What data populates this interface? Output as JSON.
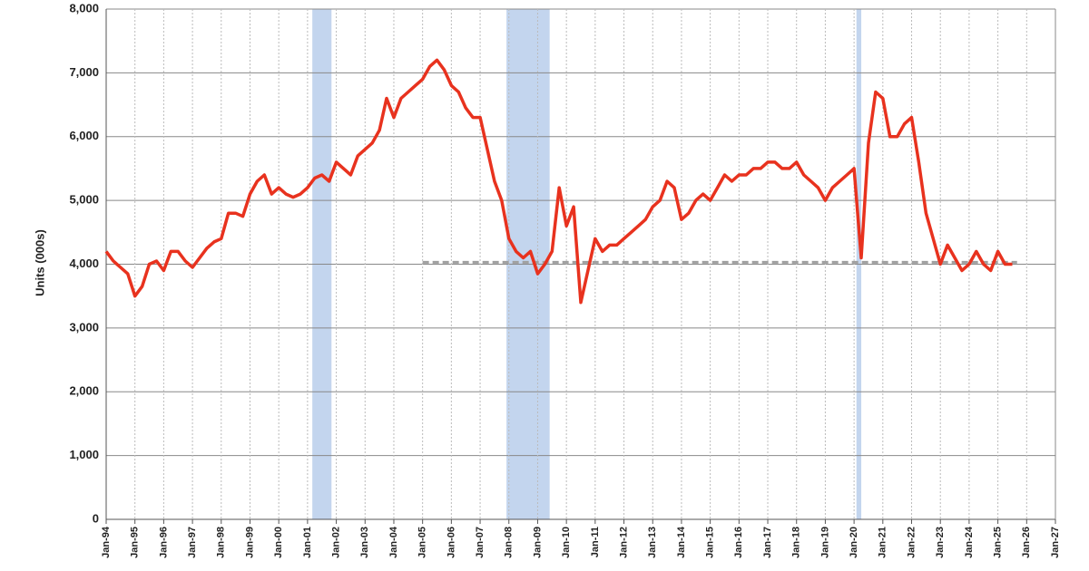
{
  "chart_data": {
    "type": "line",
    "ylabel": "Units (000s)",
    "x": [
      "1994-01",
      "1994-04",
      "1994-07",
      "1994-10",
      "1995-01",
      "1995-04",
      "1995-07",
      "1995-10",
      "1996-01",
      "1996-04",
      "1996-07",
      "1996-10",
      "1997-01",
      "1997-04",
      "1997-07",
      "1997-10",
      "1998-01",
      "1998-04",
      "1998-07",
      "1998-10",
      "1999-01",
      "1999-04",
      "1999-07",
      "1999-10",
      "2000-01",
      "2000-04",
      "2000-07",
      "2000-10",
      "2001-01",
      "2001-04",
      "2001-07",
      "2001-10",
      "2002-01",
      "2002-04",
      "2002-07",
      "2002-10",
      "2003-01",
      "2003-04",
      "2003-07",
      "2003-10",
      "2004-01",
      "2004-04",
      "2004-07",
      "2004-10",
      "2005-01",
      "2005-04",
      "2005-07",
      "2005-10",
      "2006-01",
      "2006-04",
      "2006-07",
      "2006-10",
      "2007-01",
      "2007-04",
      "2007-07",
      "2007-10",
      "2008-01",
      "2008-04",
      "2008-07",
      "2008-10",
      "2009-01",
      "2009-04",
      "2009-07",
      "2009-10",
      "2010-01",
      "2010-04",
      "2010-07",
      "2010-10",
      "2011-01",
      "2011-04",
      "2011-07",
      "2011-10",
      "2012-01",
      "2012-04",
      "2012-07",
      "2012-10",
      "2013-01",
      "2013-04",
      "2013-07",
      "2013-10",
      "2014-01",
      "2014-04",
      "2014-07",
      "2014-10",
      "2015-01",
      "2015-04",
      "2015-07",
      "2015-10",
      "2016-01",
      "2016-04",
      "2016-07",
      "2016-10",
      "2017-01",
      "2017-04",
      "2017-07",
      "2017-10",
      "2018-01",
      "2018-04",
      "2018-07",
      "2018-10",
      "2019-01",
      "2019-04",
      "2019-07",
      "2019-10",
      "2020-01",
      "2020-04",
      "2020-07",
      "2020-10",
      "2021-01",
      "2021-04",
      "2021-07",
      "2021-10",
      "2022-01",
      "2022-04",
      "2022-07",
      "2022-10",
      "2023-01",
      "2023-04",
      "2023-07",
      "2023-10",
      "2024-01",
      "2024-04",
      "2024-07",
      "2024-10",
      "2025-01",
      "2025-04",
      "2025-07"
    ],
    "series": [
      {
        "color": "#e8321e",
        "values": [
          4200,
          4050,
          3950,
          3850,
          3500,
          3650,
          4000,
          4050,
          3900,
          4200,
          4200,
          4050,
          3950,
          4100,
          4250,
          4350,
          4400,
          4800,
          4800,
          4750,
          5100,
          5300,
          5400,
          5100,
          5200,
          5100,
          5050,
          5100,
          5200,
          5350,
          5400,
          5300,
          5600,
          5500,
          5400,
          5700,
          5800,
          5900,
          6100,
          6600,
          6300,
          6600,
          6700,
          6800,
          6900,
          7100,
          7200,
          7050,
          6800,
          6700,
          6450,
          6300,
          6300,
          5800,
          5300,
          5000,
          4400,
          4200,
          4100,
          4200,
          3850,
          4000,
          4200,
          5200,
          4600,
          4900,
          3400,
          3900,
          4400,
          4200,
          4300,
          4300,
          4400,
          4500,
          4600,
          4700,
          4900,
          5000,
          5300,
          5200,
          4700,
          4800,
          5000,
          5100,
          5000,
          5200,
          5400,
          5300,
          5400,
          5400,
          5500,
          5500,
          5600,
          5600,
          5500,
          5500,
          5600,
          5400,
          5300,
          5200,
          5000,
          5200,
          5300,
          5400,
          5500,
          4100,
          5900,
          6700,
          6600,
          6000,
          6000,
          6200,
          6300,
          5600,
          4800,
          4400,
          4000,
          4300,
          4100,
          3900,
          4000,
          4200,
          4000,
          3900,
          4200,
          4000,
          4000
        ]
      }
    ],
    "recessions": [
      [
        "2001-03",
        "2001-11"
      ],
      [
        "2007-12",
        "2009-06"
      ],
      [
        "2020-02",
        "2020-04"
      ]
    ],
    "reference": {
      "value": 4030,
      "x": [
        "2005-01",
        "2025-09"
      ]
    },
    "xlim": [
      "1994-01",
      "2027-01"
    ],
    "xticks": [
      {
        "value": "1994-01",
        "label": "Jan-94"
      },
      {
        "value": "1995-01",
        "label": "Jan-95"
      },
      {
        "value": "1996-01",
        "label": "Jan-96"
      },
      {
        "value": "1997-01",
        "label": "Jan-97"
      },
      {
        "value": "1998-01",
        "label": "Jan-98"
      },
      {
        "value": "1999-01",
        "label": "Jan-99"
      },
      {
        "value": "2000-01",
        "label": "Jan-00"
      },
      {
        "value": "2001-01",
        "label": "Jan-01"
      },
      {
        "value": "2002-01",
        "label": "Jan-02"
      },
      {
        "value": "2003-01",
        "label": "Jan-03"
      },
      {
        "value": "2004-01",
        "label": "Jan-04"
      },
      {
        "value": "2005-01",
        "label": "Jan-05"
      },
      {
        "value": "2006-01",
        "label": "Jan-06"
      },
      {
        "value": "2007-01",
        "label": "Jan-07"
      },
      {
        "value": "2008-01",
        "label": "Jan-08"
      },
      {
        "value": "2009-01",
        "label": "Jan-09"
      },
      {
        "value": "2010-01",
        "label": "Jan-10"
      },
      {
        "value": "2011-01",
        "label": "Jan-11"
      },
      {
        "value": "2012-01",
        "label": "Jan-12"
      },
      {
        "value": "2013-01",
        "label": "Jan-13"
      },
      {
        "value": "2014-01",
        "label": "Jan-14"
      },
      {
        "value": "2015-01",
        "label": "Jan-15"
      },
      {
        "value": "2016-01",
        "label": "Jan-16"
      },
      {
        "value": "2017-01",
        "label": "Jan-17"
      },
      {
        "value": "2018-01",
        "label": "Jan-18"
      },
      {
        "value": "2019-01",
        "label": "Jan-19"
      },
      {
        "value": "2020-01",
        "label": "Jan-20"
      },
      {
        "value": "2021-01",
        "label": "Jan-21"
      },
      {
        "value": "2022-01",
        "label": "Jan-22"
      },
      {
        "value": "2023-01",
        "label": "Jan-23"
      },
      {
        "value": "2024-01",
        "label": "Jan-24"
      },
      {
        "value": "2025-01",
        "label": "Jan-25"
      },
      {
        "value": "2026-01",
        "label": "Jan-26"
      },
      {
        "value": "2027-01",
        "label": "Jan-27"
      }
    ],
    "ylim": [
      0,
      8000
    ],
    "yticks": [
      0,
      {
        "value": 1000,
        "label": "1,000"
      },
      {
        "value": 2000,
        "label": "2,000"
      },
      {
        "value": 3000,
        "label": "3,000"
      },
      {
        "value": 4000,
        "label": "4,000"
      },
      {
        "value": 5000,
        "label": "5,000"
      },
      {
        "value": 6000,
        "label": "6,000"
      },
      {
        "value": 7000,
        "label": "7,000"
      },
      {
        "value": 8000,
        "label": "8,000"
      }
    ],
    "grid": true
  }
}
